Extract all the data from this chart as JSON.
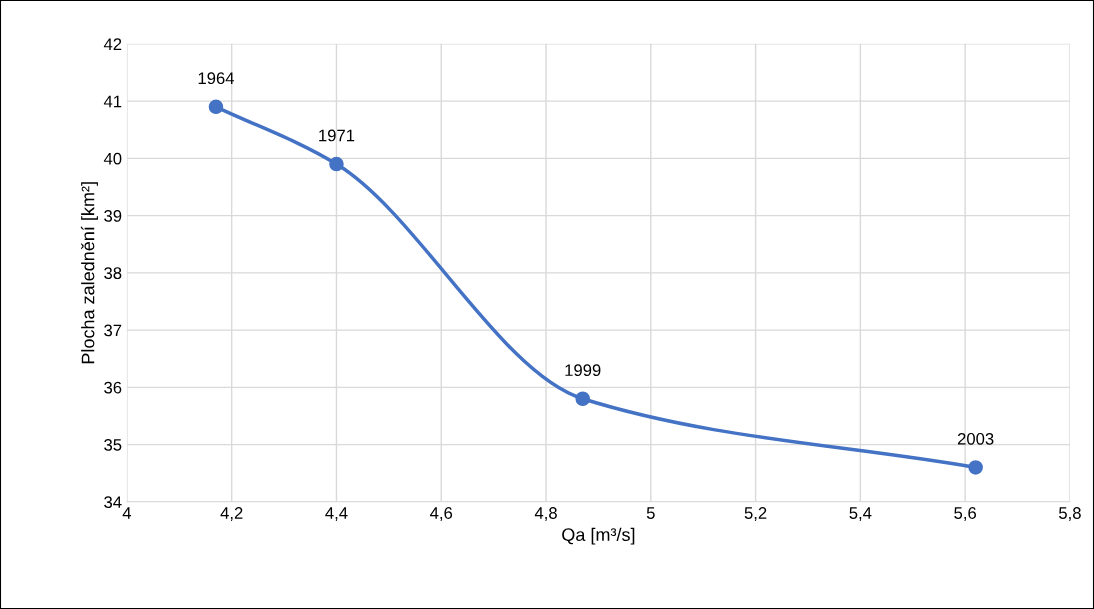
{
  "chart_data": {
    "type": "line",
    "xlabel": "Qa [m³/s]",
    "ylabel": "Plocha zalednění [km²]",
    "x": [
      4.17,
      4.4,
      4.87,
      5.62
    ],
    "series": [
      {
        "color": "#4472c4",
        "values": [
          40.9,
          39.9,
          35.8,
          34.6
        ]
      }
    ],
    "annotations": [
      {
        "text": "1964",
        "x": 4.17,
        "y": 40.9
      },
      {
        "text": "1971",
        "x": 4.4,
        "y": 39.9
      },
      {
        "text": "1999",
        "x": 4.87,
        "y": 35.8
      },
      {
        "text": "2003",
        "x": 5.62,
        "y": 34.6
      }
    ],
    "xlim": [
      4,
      5.8
    ],
    "xticks": [
      4,
      {
        "value": 4.2,
        "label": "4,2"
      },
      {
        "value": 4.4,
        "label": "4,4"
      },
      {
        "value": 4.6,
        "label": "4,6"
      },
      {
        "value": 4.8,
        "label": "4,8"
      },
      5,
      {
        "value": 5.2,
        "label": "5,2"
      },
      {
        "value": 5.4,
        "label": "5,4"
      },
      {
        "value": 5.6,
        "label": "5,6"
      },
      {
        "value": 5.8,
        "label": "5,8"
      }
    ],
    "ylim": [
      34,
      42
    ],
    "yticks": [
      34,
      35,
      36,
      37,
      38,
      39,
      40,
      41,
      42
    ],
    "grid": true,
    "marker": "circle",
    "line_style": "solid"
  }
}
